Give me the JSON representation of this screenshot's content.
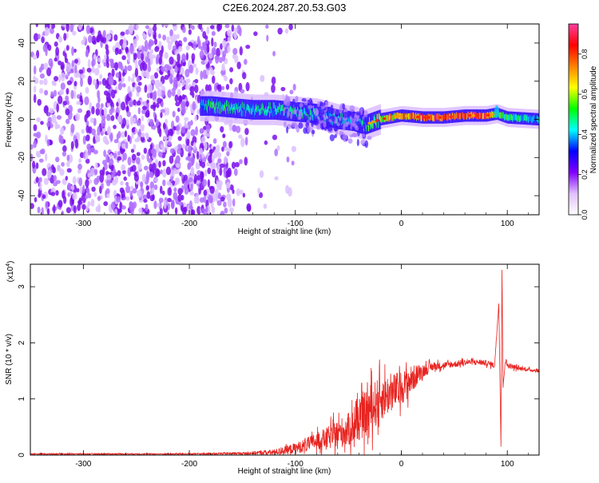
{
  "title": "C2E6.2024.287.20.53.G03",
  "colorbar": {
    "label": "Normalized spectral amplitude",
    "ticks": [
      "0.0",
      "0.2",
      "0.4",
      "0.6",
      "0.8"
    ],
    "tick_values": [
      0.0,
      0.2,
      0.4,
      0.6,
      0.8
    ],
    "range": [
      0.0,
      0.95
    ],
    "colors": [
      "#ffffff",
      "#e0c0ff",
      "#8000ff",
      "#0000ff",
      "#00ffff",
      "#00ff00",
      "#ffff00",
      "#ff8000",
      "#ff0000",
      "#ff40a0"
    ]
  },
  "chart_data": [
    {
      "type": "heatmap",
      "title": "C2E6.2024.287.20.53.G03",
      "xlabel": "Height of straight line (km)",
      "ylabel": "Frequency (Hz)",
      "xlim": [
        -350,
        130
      ],
      "ylim": [
        -50,
        50
      ],
      "xticks": [
        "-300",
        "-200",
        "-100",
        "0",
        "100"
      ],
      "xtick_values": [
        -300,
        -200,
        -100,
        0,
        100
      ],
      "yticks": [
        "-40",
        "-20",
        "0",
        "20",
        "40"
      ],
      "ytick_values": [
        -40,
        -20,
        0,
        20,
        40
      ],
      "ridge": {
        "x": [
          -190,
          -180,
          -160,
          -140,
          -120,
          -100,
          -80,
          -60,
          -45,
          -35,
          -20,
          -10,
          0,
          20,
          40,
          60,
          80,
          90,
          100,
          130
        ],
        "y": [
          7,
          7,
          6,
          5,
          5,
          4,
          3,
          0,
          -1,
          -3,
          0,
          1,
          2,
          1,
          1,
          2,
          2,
          3,
          1,
          0
        ],
        "amplitude": [
          0.4,
          0.5,
          0.5,
          0.45,
          0.45,
          0.5,
          0.45,
          0.45,
          0.4,
          0.5,
          0.6,
          0.7,
          0.7,
          0.8,
          0.85,
          0.85,
          0.85,
          0.5,
          0.5,
          0.4
        ]
      },
      "noise_region_x": [
        -350,
        -140
      ],
      "grid": false
    },
    {
      "type": "line",
      "xlabel": "Height of straight line (km)",
      "ylabel": "SNR (10 * v/v)",
      "yscale_label": "(x10",
      "yscale_exp": "4",
      "yscale_close": ")",
      "xlim": [
        -350,
        130
      ],
      "ylim": [
        0,
        3.4
      ],
      "xticks": [
        "-300",
        "-200",
        "-100",
        "0",
        "100"
      ],
      "xtick_values": [
        -300,
        -200,
        -100,
        0,
        100
      ],
      "yticks": [
        "0",
        "1",
        "2",
        "3"
      ],
      "ytick_values": [
        0,
        1,
        2,
        3
      ],
      "series": [
        {
          "color": "#e8231f",
          "x": [
            -350,
            -300,
            -250,
            -200,
            -150,
            -120,
            -100,
            -90,
            -80,
            -70,
            -60,
            -50,
            -40,
            -30,
            -20,
            -10,
            0,
            10,
            20,
            30,
            40,
            50,
            60,
            70,
            80,
            88,
            92,
            94,
            95,
            96,
            98,
            100,
            110,
            120,
            130
          ],
          "y": [
            0.02,
            0.02,
            0.02,
            0.02,
            0.03,
            0.05,
            0.12,
            0.18,
            0.25,
            0.3,
            0.38,
            0.45,
            0.6,
            0.8,
            1.0,
            1.1,
            1.2,
            1.35,
            1.5,
            1.58,
            1.6,
            1.62,
            1.65,
            1.66,
            1.64,
            1.6,
            2.7,
            0.15,
            3.3,
            1.2,
            1.7,
            1.6,
            1.55,
            1.52,
            1.5
          ],
          "noise": [
            0.01,
            0.01,
            0.01,
            0.01,
            0.02,
            0.05,
            0.1,
            0.12,
            0.15,
            0.2,
            0.25,
            0.3,
            0.35,
            0.45,
            0.4,
            0.35,
            0.3,
            0.25,
            0.12,
            0.08,
            0.06,
            0.06,
            0.05,
            0.05,
            0.05,
            0.05,
            0,
            0,
            0,
            0,
            0.08,
            0.05,
            0.04,
            0.03,
            0.03
          ]
        }
      ],
      "grid": false
    }
  ]
}
